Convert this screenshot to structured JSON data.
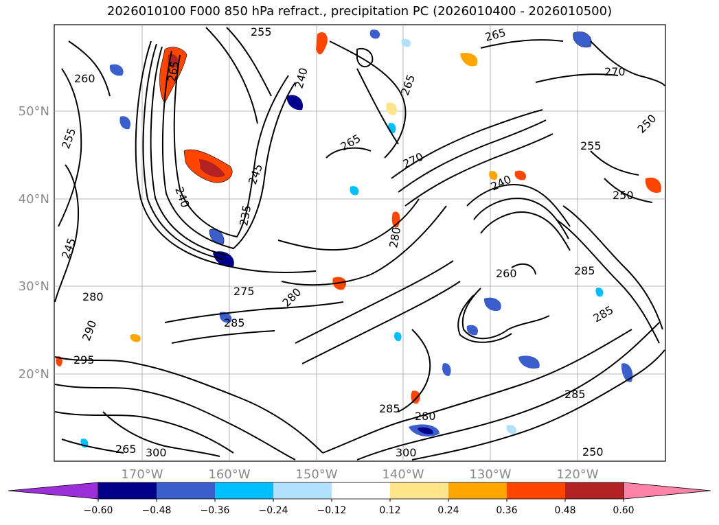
{
  "title": "2026010100 F000 850 hPa refract., precipitation PC (2026010400 - 2026010500)",
  "map": {
    "lat_labels": [
      "50°N",
      "40°N",
      "30°N",
      "20°N"
    ],
    "lon_labels": [
      "170°W",
      "160°W",
      "150°W",
      "140°W",
      "130°W",
      "120°W"
    ],
    "contour_labels": [
      "255",
      "265",
      "265",
      "270",
      "260",
      "265",
      "255",
      "250",
      "245",
      "240",
      "240",
      "265",
      "270",
      "240",
      "255",
      "250",
      "235",
      "280",
      "260",
      "285",
      "275",
      "280",
      "280",
      "285",
      "290",
      "285",
      "285",
      "295",
      "300",
      "300",
      "285",
      "280",
      "265",
      "250",
      "245"
    ],
    "colors": {
      "contour": "#000000",
      "grid": "#a0a0a0",
      "tick_text": "#8a8a8a"
    }
  },
  "colorbar": {
    "bins": [
      "#9b30d9",
      "#00008b",
      "#3a5fcd",
      "#00bfff",
      "#b0e2ff",
      "#ffffff",
      "#ffe48a",
      "#ffa500",
      "#ff4500",
      "#b22222",
      "#ff83a8"
    ],
    "labels": [
      "−0.60",
      "−0.48",
      "−0.36",
      "−0.24",
      "−0.12",
      "0.12",
      "0.24",
      "0.36",
      "0.48",
      "0.60"
    ]
  }
}
